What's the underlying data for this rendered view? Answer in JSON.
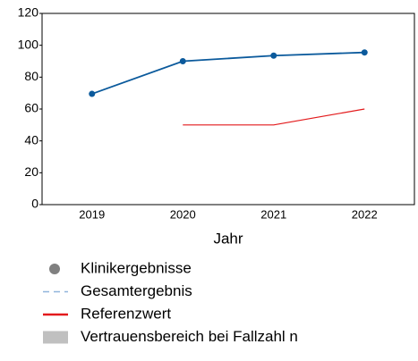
{
  "chart_data": {
    "type": "line",
    "x_label": "Jahr",
    "categories": [
      "2019",
      "2020",
      "2021",
      "2022"
    ],
    "series": [
      {
        "name": "Klinikergebnisse",
        "color": "#0b5a9c",
        "legend_color": "#808080",
        "style": "line-dots",
        "values": [
          69.5,
          90,
          93.5,
          95.5
        ]
      },
      {
        "name": "Gesamtergebnis",
        "color": "#8fb4dc",
        "style": "dashed",
        "values": [
          null,
          null,
          null,
          null
        ]
      },
      {
        "name": "Referenzwert",
        "color": "#e31a1c",
        "style": "line",
        "values": [
          null,
          50,
          50,
          60
        ]
      },
      {
        "name": "Vertrauensbereich bei Fallzahl n",
        "color": "#c0c0c0",
        "style": "band",
        "values": [
          null,
          null,
          null,
          null
        ]
      }
    ],
    "ylim": [
      0,
      120
    ],
    "yticks": [
      0,
      20,
      40,
      60,
      80,
      100,
      120
    ],
    "grid": false
  }
}
